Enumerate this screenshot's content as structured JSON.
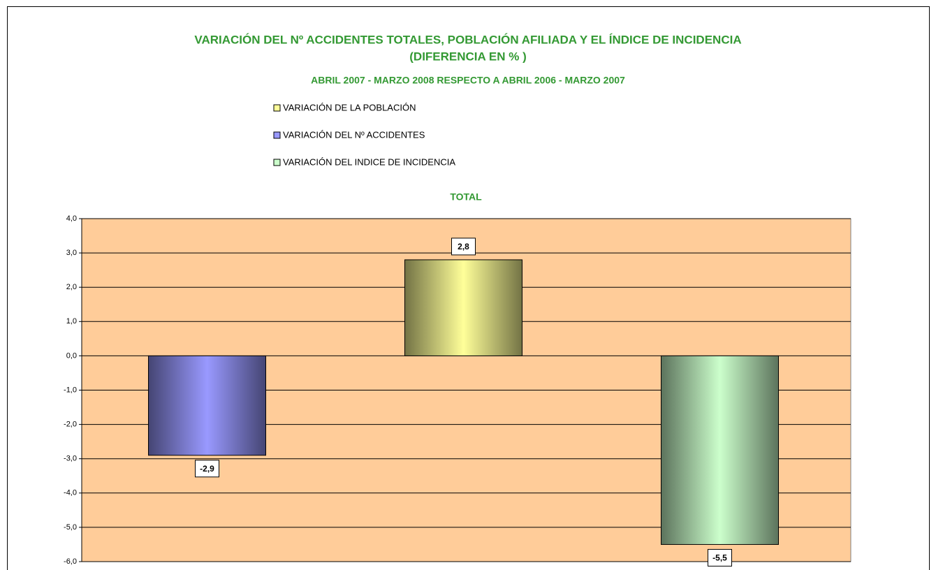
{
  "chart_data": {
    "type": "bar",
    "title": [
      "VARIACIÓN DEL Nº ACCIDENTES TOTALES, POBLACIÓN AFILIADA Y EL ÍNDICE DE INCIDENCIA",
      "(DIFERENCIA EN  % )"
    ],
    "subtitle": "ABRIL 2007 - MARZO 2008  RESPECTO A ABRIL 2006 - MARZO 2007",
    "panel_title": "TOTAL",
    "series": [
      {
        "name": "VARIACIÓN DE LA POBLACIÓN",
        "color": "#ffff99",
        "values": [
          2.8
        ],
        "value_labels": [
          "2,8"
        ]
      },
      {
        "name": "VARIACIÓN DEL Nº ACCIDENTES",
        "color": "#9999ff",
        "values": [
          -2.9
        ],
        "value_labels": [
          "-2,9"
        ]
      },
      {
        "name": "VARIACIÓN DEL INDICE DE INCIDENCIA",
        "color": "#ccffcc",
        "values": [
          -5.5
        ],
        "value_labels": [
          "-5,5"
        ]
      }
    ],
    "ylim": [
      -6,
      4
    ],
    "yticks": [
      {
        "value": -6,
        "label": "-6,0"
      },
      {
        "value": -5,
        "label": "-5,0"
      },
      {
        "value": -4,
        "label": "-4,0"
      },
      {
        "value": -3,
        "label": "-3,0"
      },
      {
        "value": -2,
        "label": "-2,0"
      },
      {
        "value": -1,
        "label": "-1,0"
      },
      {
        "value": 0,
        "label": "0,0"
      },
      {
        "value": 1,
        "label": "1,0"
      },
      {
        "value": 2,
        "label": "2,0"
      },
      {
        "value": 3,
        "label": "3,0"
      },
      {
        "value": 4,
        "label": "4,0"
      }
    ],
    "grid": true,
    "plot_background": "#ffcc99"
  }
}
